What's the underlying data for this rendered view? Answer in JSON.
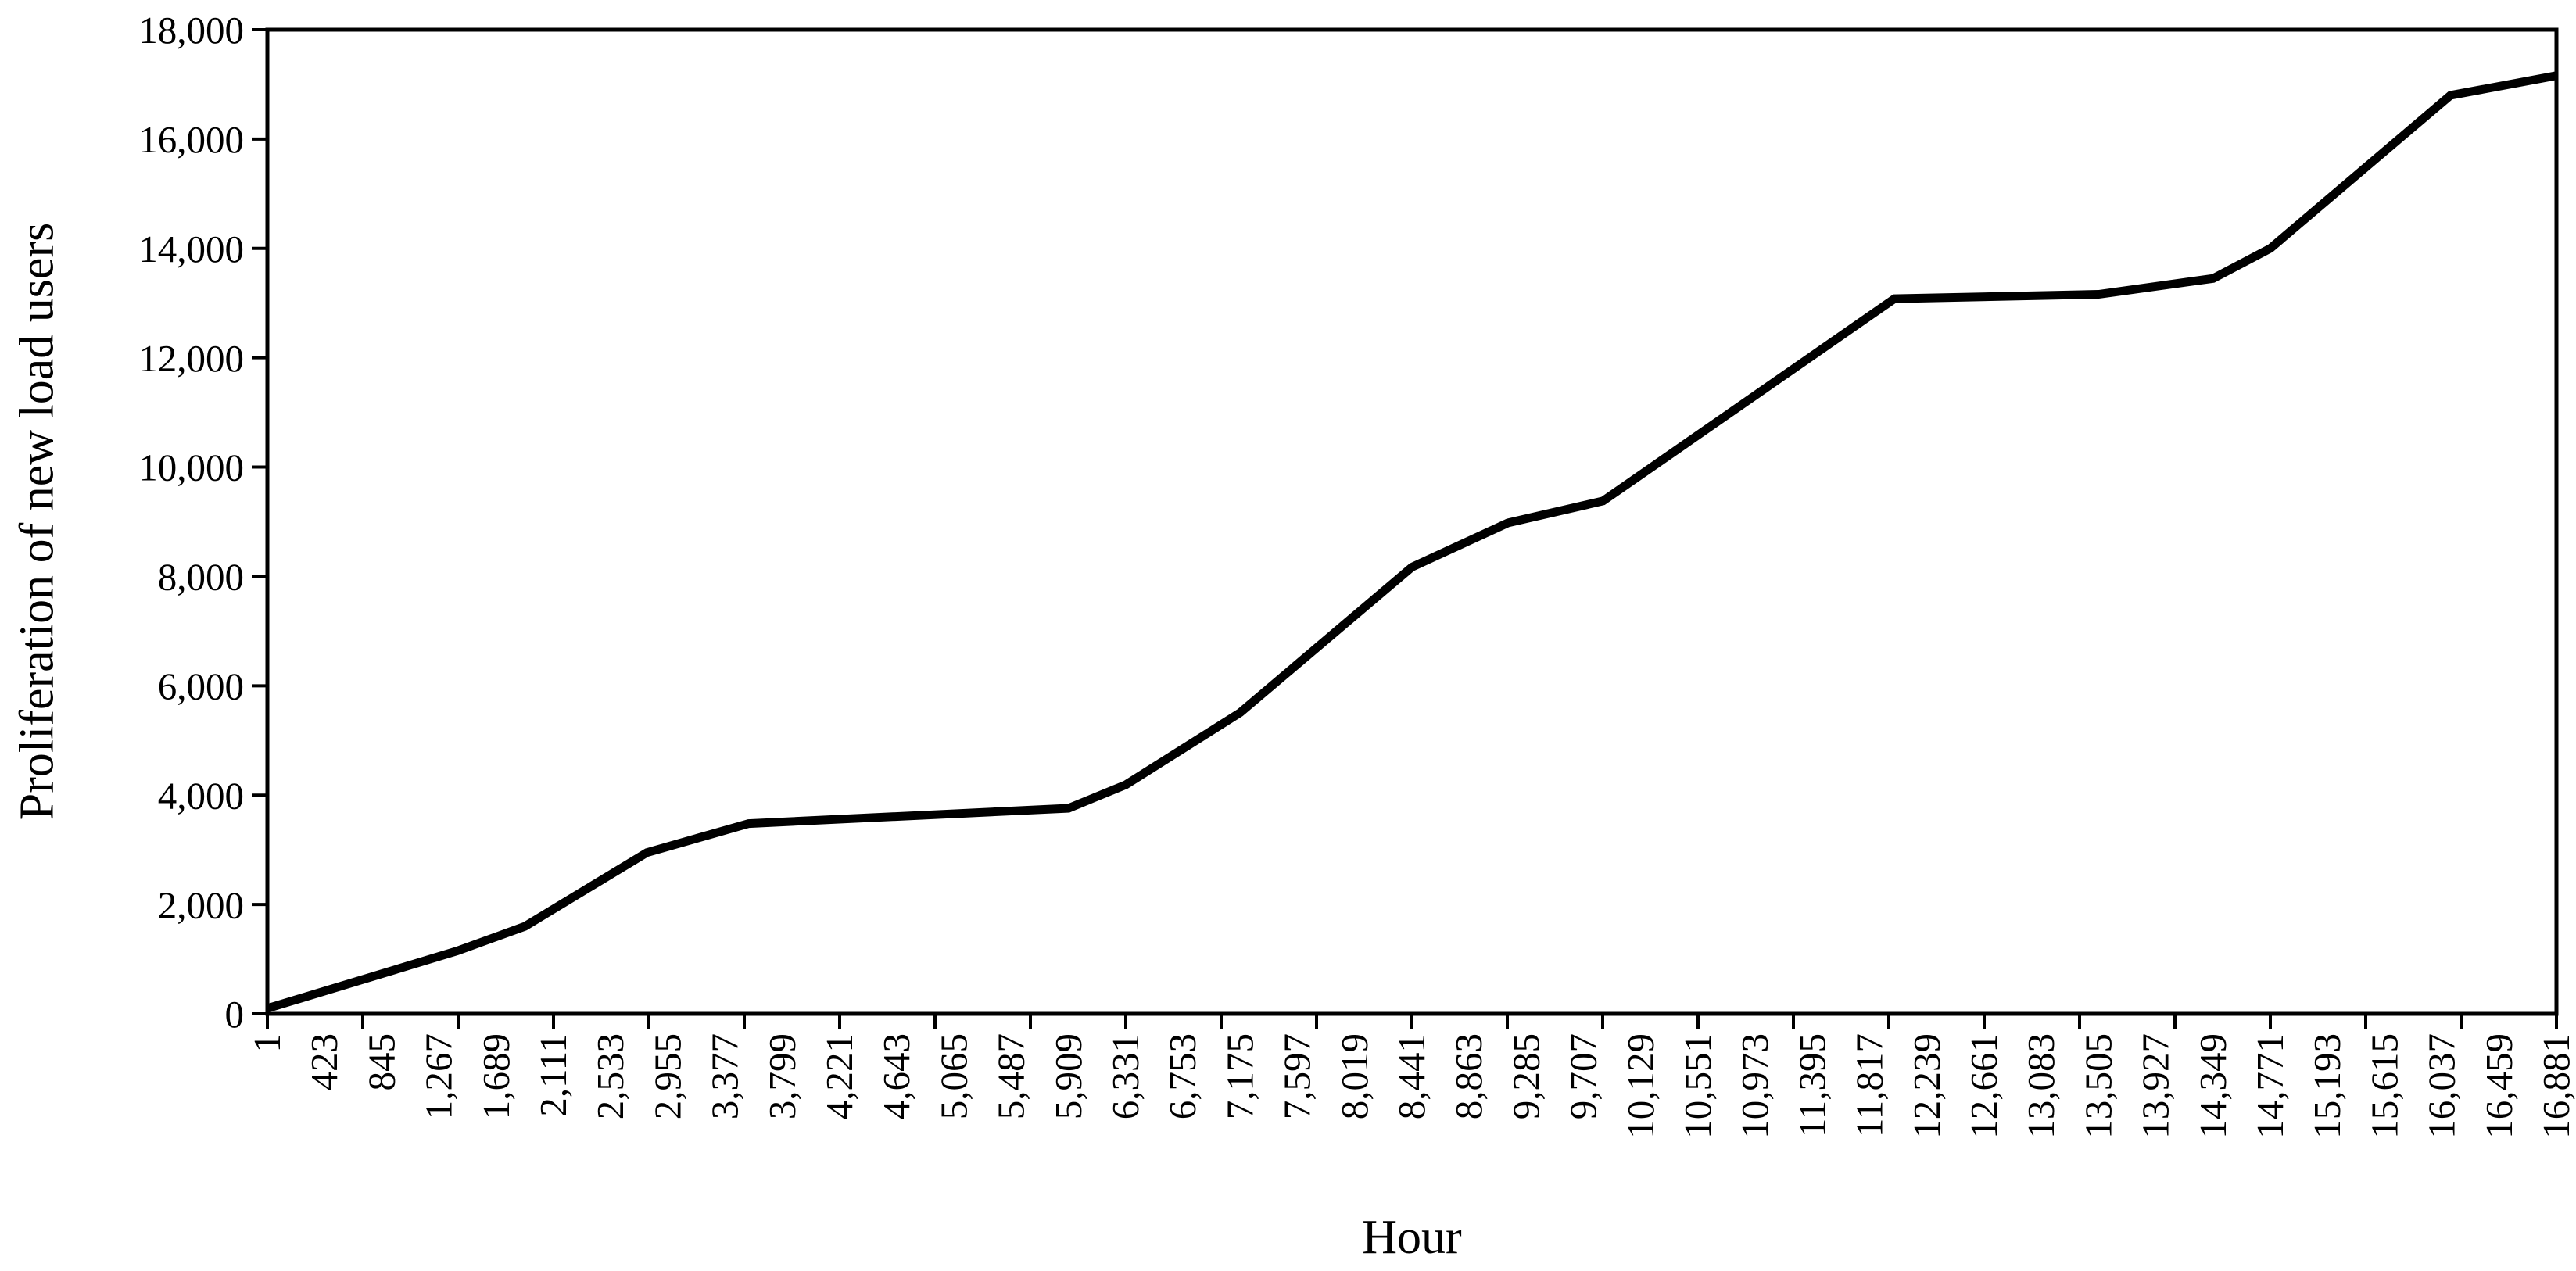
{
  "figure": {
    "xlabel": "Hour",
    "ylabel": "Proliferation of new load users"
  },
  "chart_data": {
    "type": "line",
    "title": "",
    "xlabel": "Hour",
    "ylabel": "Proliferation of new load users",
    "grid": false,
    "legend_position": "none",
    "xlim": [
      1,
      16881
    ],
    "ylim": [
      0,
      18000
    ],
    "x_tick_labels": [
      "1",
      "423",
      "845",
      "1,267",
      "1,689",
      "2,111",
      "2,533",
      "2,955",
      "3,377",
      "3,799",
      "4,221",
      "4,643",
      "5,065",
      "5,487",
      "5,909",
      "6,331",
      "6,753",
      "7,175",
      "7,597",
      "8,019",
      "8,441",
      "8,863",
      "9,285",
      "9,707",
      "10,129",
      "10,551",
      "10,973",
      "11,395",
      "11,817",
      "12,239",
      "12,661",
      "13,083",
      "13,505",
      "13,927",
      "14,349",
      "14,771",
      "15,193",
      "15,615",
      "16,037",
      "16,459",
      "16,881"
    ],
    "y_tick_values": [
      0,
      2000,
      4000,
      6000,
      8000,
      10000,
      12000,
      14000,
      16000,
      18000
    ],
    "y_tick_labels": [
      "0",
      "2,000",
      "4,000",
      "6,000",
      "8,000",
      "10,000",
      "12,000",
      "14,000",
      "16,000",
      "18,000"
    ],
    "series": [
      {
        "x": [
          1,
          423,
          845,
          1267,
          1689,
          2111,
          2533,
          2955,
          3377,
          3799,
          4221,
          4643,
          5065,
          5487,
          5909,
          6331,
          6753,
          7175,
          7597,
          8019,
          8441,
          8863,
          9285,
          9707,
          10129,
          10551,
          10973,
          11395,
          11817,
          12239,
          12661,
          13083,
          13505,
          13927,
          14349,
          14771,
          15193,
          15615,
          16037,
          16459,
          16881
        ],
        "values": [
          100,
          420,
          730,
          1050,
          1410,
          1920,
          2550,
          3060,
          3360,
          3510,
          3560,
          3610,
          3660,
          3710,
          3760,
          4190,
          4850,
          5510,
          6400,
          7280,
          8170,
          8650,
          9060,
          9300,
          9860,
          10590,
          11310,
          12040,
          12770,
          13090,
          13120,
          13140,
          13160,
          13310,
          13450,
          14000,
          14890,
          15780,
          16670,
          16970,
          17160
        ],
        "key_points": [
          [
            1,
            100
          ],
          [
            1400,
            1150
          ],
          [
            1900,
            1600
          ],
          [
            2800,
            2950
          ],
          [
            3550,
            3480
          ],
          [
            5909,
            3760
          ],
          [
            6331,
            4190
          ],
          [
            7175,
            5510
          ],
          [
            8441,
            8170
          ],
          [
            9150,
            8980
          ],
          [
            9850,
            9380
          ],
          [
            12000,
            13080
          ],
          [
            13505,
            13160
          ],
          [
            14349,
            13450
          ],
          [
            14771,
            14000
          ],
          [
            16100,
            16800
          ],
          [
            16881,
            17160
          ]
        ]
      }
    ],
    "line_color": "#000000",
    "axis_color": "#000000",
    "background": "#ffffff"
  }
}
